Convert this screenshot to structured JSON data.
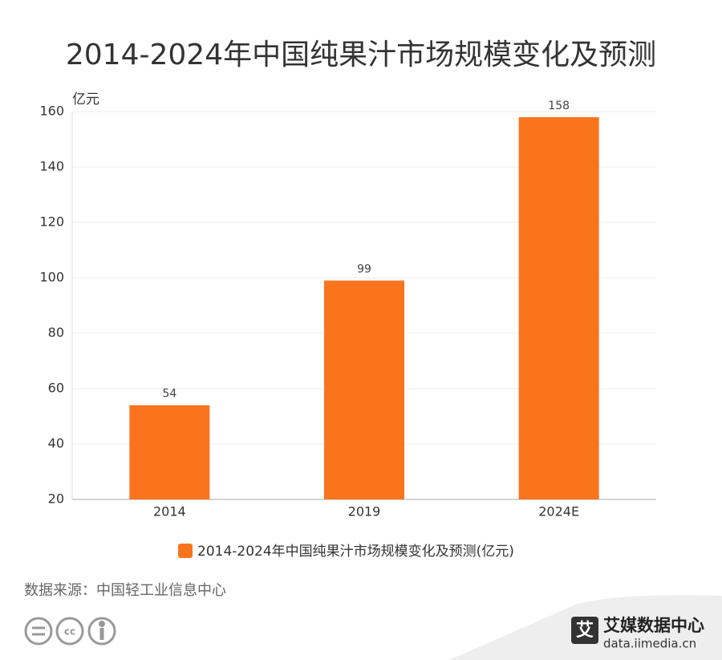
{
  "chart_data": {
    "type": "bar",
    "title": "2014-2024年中国纯果汁市场规模变化及预测",
    "y_label": "亿元",
    "categories": [
      "2014",
      "2019",
      "2024E"
    ],
    "series": [
      {
        "name": "2014-2024年中国纯果汁市场规模变化及预测(亿元)",
        "color": "#fa741e",
        "values": [
          54,
          99,
          158
        ]
      }
    ],
    "ylim": [
      20,
      160
    ],
    "yticks": [
      20,
      40,
      60,
      80,
      100,
      120,
      140,
      160
    ],
    "grid": true
  },
  "source": "数据来源：中国轻工业信息中心",
  "logo": {
    "name": "艾媒数据中心",
    "url": "data.iimedia.cn"
  }
}
